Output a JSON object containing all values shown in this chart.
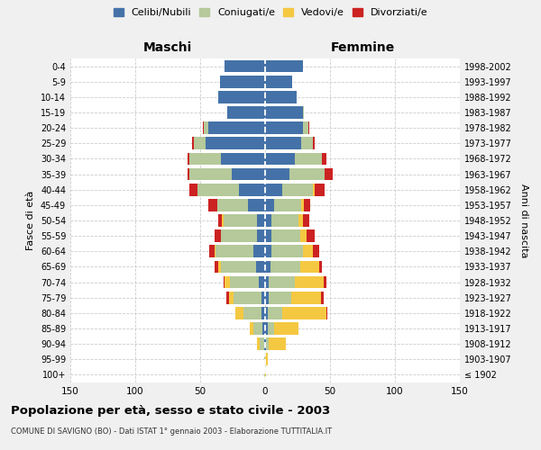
{
  "age_groups": [
    "100+",
    "95-99",
    "90-94",
    "85-89",
    "80-84",
    "75-79",
    "70-74",
    "65-69",
    "60-64",
    "55-59",
    "50-54",
    "45-49",
    "40-44",
    "35-39",
    "30-34",
    "25-29",
    "20-24",
    "15-19",
    "10-14",
    "5-9",
    "0-4"
  ],
  "birth_years": [
    "≤ 1902",
    "1903-1907",
    "1908-1912",
    "1913-1917",
    "1918-1922",
    "1923-1927",
    "1928-1932",
    "1933-1937",
    "1938-1942",
    "1943-1947",
    "1948-1952",
    "1953-1957",
    "1958-1962",
    "1963-1967",
    "1968-1972",
    "1973-1977",
    "1978-1982",
    "1983-1987",
    "1988-1992",
    "1993-1997",
    "1998-2002"
  ],
  "maschi": {
    "celibi": [
      0,
      0,
      1,
      2,
      3,
      3,
      5,
      7,
      9,
      6,
      6,
      13,
      20,
      26,
      34,
      46,
      44,
      29,
      36,
      35,
      31
    ],
    "coniugati": [
      1,
      1,
      3,
      7,
      14,
      21,
      22,
      27,
      29,
      28,
      26,
      24,
      32,
      32,
      24,
      9,
      3,
      0,
      0,
      0,
      0
    ],
    "vedovi": [
      0,
      0,
      2,
      3,
      6,
      4,
      4,
      2,
      1,
      0,
      1,
      0,
      0,
      0,
      0,
      0,
      0,
      0,
      0,
      0,
      0
    ],
    "divorziati": [
      0,
      0,
      0,
      0,
      0,
      2,
      1,
      3,
      4,
      5,
      3,
      7,
      6,
      2,
      2,
      1,
      1,
      0,
      0,
      0,
      0
    ]
  },
  "femmine": {
    "nubili": [
      0,
      0,
      1,
      2,
      2,
      3,
      3,
      4,
      5,
      5,
      5,
      7,
      13,
      19,
      23,
      28,
      29,
      29,
      24,
      21,
      29
    ],
    "coniugate": [
      0,
      0,
      2,
      5,
      11,
      17,
      20,
      23,
      24,
      22,
      21,
      21,
      24,
      27,
      21,
      9,
      4,
      1,
      0,
      0,
      0
    ],
    "vedove": [
      1,
      2,
      13,
      19,
      34,
      23,
      22,
      15,
      8,
      5,
      3,
      2,
      1,
      0,
      0,
      0,
      0,
      0,
      0,
      0,
      0
    ],
    "divorziate": [
      0,
      0,
      0,
      0,
      1,
      2,
      2,
      2,
      5,
      6,
      5,
      5,
      8,
      6,
      3,
      1,
      1,
      0,
      0,
      0,
      0
    ]
  },
  "colors": {
    "celibi": "#4472a8",
    "coniugati": "#b5c99a",
    "vedovi": "#f5c842",
    "divorziati": "#cc2222"
  },
  "xlim": 150,
  "title": "Popolazione per età, sesso e stato civile - 2003",
  "subtitle": "COMUNE DI SAVIGNO (BO) - Dati ISTAT 1° gennaio 2003 - Elaborazione TUTTITALIA.IT",
  "xlabel_left": "Maschi",
  "xlabel_right": "Femmine",
  "ylabel_left": "Fasce di età",
  "ylabel_right": "Anni di nascita",
  "bg_color": "#f0f0f0",
  "plot_bg": "#ffffff",
  "grid_color": "#cccccc"
}
